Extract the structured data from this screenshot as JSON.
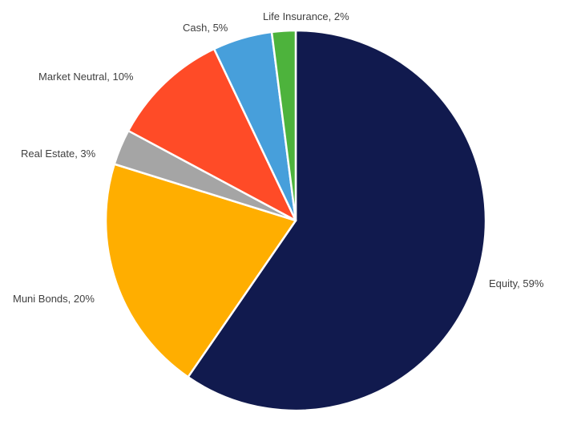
{
  "chart_data": {
    "type": "pie",
    "title": "",
    "start": "12 o'clock",
    "direction": "clockwise",
    "legend": "none",
    "slices": [
      {
        "name": "Equity",
        "value": 59,
        "label": "Equity, 59%",
        "color": "#111a4e"
      },
      {
        "name": "Muni Bonds",
        "value": 20,
        "label": "Muni Bonds, 20%",
        "color": "#ffae00"
      },
      {
        "name": "Real Estate",
        "value": 3,
        "label": "Real Estate, 3%",
        "color": "#a5a5a5"
      },
      {
        "name": "Market Neutral",
        "value": 10,
        "label": "Market Neutral, 10%",
        "color": "#ff4b27"
      },
      {
        "name": "Cash",
        "value": 5,
        "label": "Cash, 5%",
        "color": "#479fdb"
      },
      {
        "name": "Life Insurance",
        "value": 2,
        "label": "Life Insurance, 2%",
        "color": "#4db33c"
      }
    ]
  }
}
